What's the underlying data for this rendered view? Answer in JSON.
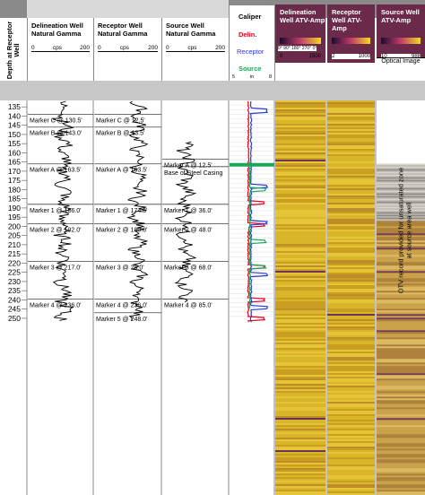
{
  "header": {
    "depth_axis": "Depth at Receptor Well",
    "delineation_gamma": {
      "title": "Delineation Well Natural Gamma",
      "min": "0",
      "unit": "cps",
      "max": "200"
    },
    "receptor_gamma": {
      "title": "Receptor Well Natural Gamma",
      "min": "0",
      "unit": "cps",
      "max": "200"
    },
    "source_gamma": {
      "title": "Source Well Natural Gamma",
      "min": "0",
      "unit": "cps",
      "max": "200"
    },
    "caliper": {
      "title": "Caliper",
      "delin": "Delin.",
      "receptor": "Receptor",
      "source": "Source",
      "min": "5",
      "unit": "in",
      "max": "8"
    },
    "delineation_atv": {
      "title": "Delineation Well ATV-Amp",
      "angles": "0° 90° 180° 270° 0°",
      "min": "0",
      "max": "1500"
    },
    "receptor_atv": {
      "title": "Receptor Well ATV-Amp",
      "min": "2",
      "max": "1000"
    },
    "source_atv": {
      "title": "Source Well ATV-Amp",
      "min": "10",
      "max": "988"
    },
    "optical_label": "Optical Image"
  },
  "depth_ticks": [
    "135",
    "140",
    "145",
    "150",
    "155",
    "160",
    "165",
    "170",
    "175",
    "180",
    "185",
    "190",
    "195",
    "200",
    "205",
    "210",
    "215",
    "220",
    "225",
    "230",
    "235",
    "240",
    "245",
    "250"
  ],
  "markers": {
    "delineation": [
      {
        "label": "Marker C @ 130.5'",
        "depth": 139
      },
      {
        "label": "Marker B @ 143.0'",
        "depth": 146
      },
      {
        "label": "Marker A @ 163.5'",
        "depth": 166
      },
      {
        "label": "Marker 1 @ 186.0'",
        "depth": 188
      },
      {
        "label": "Marker 2 @ 192.0'",
        "depth": 198.5
      },
      {
        "label": "Marker 3 @ 217.0'",
        "depth": 219
      },
      {
        "label": "Marker 4 @ 236.0'",
        "depth": 239.5
      }
    ],
    "receptor": [
      {
        "label": "Marker C @ 12.5'",
        "depth": 139
      },
      {
        "label": "Marker B @ 13.5'",
        "depth": 146
      },
      {
        "label": "Marker A @ 163.5'",
        "depth": 166
      },
      {
        "label": "Marker 1 @ 174.5'",
        "depth": 188
      },
      {
        "label": "Marker 2 @ 180.0'",
        "depth": 198.5
      },
      {
        "label": "Marker 3 @ 28.0'",
        "depth": 219
      },
      {
        "label": "Marker 4 @ 236.0'",
        "depth": 239.5
      },
      {
        "label": "Marker 5 @ 248.0'",
        "depth": 247
      }
    ],
    "source": [
      {
        "label": "Marker A @ 12.5'",
        "depth": 163.5
      },
      {
        "label": "Base of Steel Casing",
        "depth": 167.5
      },
      {
        "label": "Marker 1 @ 36.0'",
        "depth": 188
      },
      {
        "label": "Marker 2 @ 48.0'",
        "depth": 198.5
      },
      {
        "label": "Marker 3 @ 68.0'",
        "depth": 219
      },
      {
        "label": "Marker 4 @ 85.0'",
        "depth": 239.5
      }
    ]
  },
  "otv_note": "OTV record provided for unsaturated zone at source area well",
  "colors": {
    "delin": "#e8001c",
    "receptor": "#2b3bd6",
    "source": "#19a85a",
    "atv_base": "#d4b21c",
    "atv_dark": "#4a1a5a"
  }
}
